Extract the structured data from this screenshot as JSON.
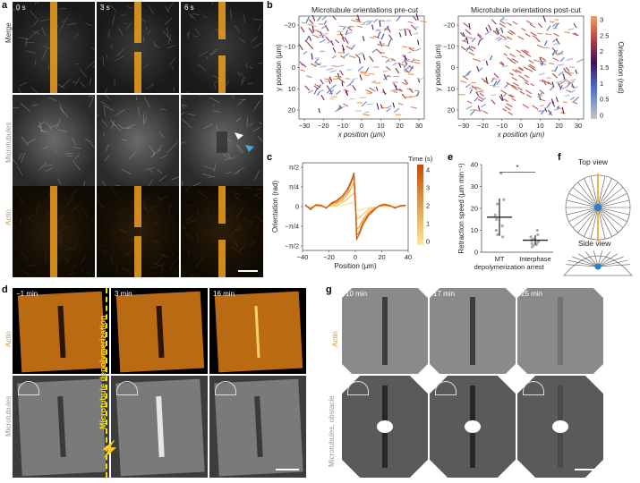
{
  "panel_a": {
    "label": "a",
    "times": [
      "0 s",
      "3 s",
      "6 s"
    ],
    "rows": [
      "Merge",
      "Microtubules",
      "Actin"
    ]
  },
  "panel_b": {
    "label": "b",
    "title_pre": "Microtubule orientations pre-cut",
    "title_post": "Microtubule orientations post-cut",
    "xlabel": "x position (µm)",
    "ylabel": "y position (µm)",
    "colorbar_label": "Orientation (rad)",
    "colorbar_ticks": [
      "3",
      "2.5",
      "2",
      "1.5",
      "1",
      "0.5",
      "0"
    ],
    "xticks": [
      "−30",
      "−20",
      "−10",
      "0",
      "10",
      "20",
      "30"
    ],
    "yticks": [
      "−20",
      "−10",
      "0",
      "10",
      "20"
    ]
  },
  "panel_c": {
    "label": "c",
    "legend_title": "Time (s)",
    "legend_ticks": [
      "4",
      "3",
      "2",
      "1",
      "0"
    ]
  },
  "panel_e": {
    "label": "e",
    "significance": "*"
  },
  "panel_f": {
    "label": "f",
    "top_view": "Top view",
    "side_view": "Side view"
  },
  "panel_d": {
    "label": "d",
    "times": [
      "−1 min",
      "3 min",
      "16 min"
    ],
    "rows": [
      "Actin",
      "Microtubules"
    ],
    "event": "Microtubule depolymerization"
  },
  "panel_g": {
    "label": "g",
    "times": [
      "10 min",
      "17 min",
      "25 min"
    ],
    "row_actin": "Actin",
    "row_mt_a": "Microtubules,",
    "row_mt_b": "obstacle"
  },
  "chart_data": [
    {
      "type": "line",
      "panel": "c",
      "xlabel": "Position (µm)",
      "ylabel": "Orientation (rad)",
      "xlim": [
        -40,
        40
      ],
      "ylim": [
        -1.75,
        1.75
      ],
      "xticks": [
        "−40",
        "−20",
        "0",
        "20",
        "40"
      ],
      "yticks": [
        "π/2",
        "π/4",
        "0",
        "−π/4",
        "−π/2"
      ],
      "x": [
        -38,
        -34,
        -30,
        -26,
        -22,
        -18,
        -14,
        -10,
        -6,
        -3,
        -1,
        0,
        1,
        3,
        6,
        10,
        14,
        18,
        22,
        26,
        30,
        34,
        38
      ],
      "series": [
        {
          "name": "0",
          "values": [
            0.0,
            -0.02,
            0.01,
            0.0,
            -0.01,
            0.02,
            0.03,
            0.05,
            0.1,
            0.15,
            0.12,
            0.0,
            -0.12,
            -0.15,
            -0.1,
            -0.05,
            -0.02,
            0.0,
            0.01,
            0.0,
            -0.01,
            0.0,
            0.0
          ]
        },
        {
          "name": "1",
          "values": [
            0.02,
            -0.03,
            0.04,
            0.02,
            -0.02,
            0.05,
            0.08,
            0.15,
            0.3,
            0.45,
            0.55,
            0.1,
            -0.5,
            -0.45,
            -0.3,
            -0.12,
            -0.05,
            0.0,
            0.04,
            0.02,
            -0.02,
            0.0,
            0.02
          ]
        },
        {
          "name": "2",
          "values": [
            0.05,
            -0.06,
            0.05,
            0.03,
            -0.04,
            0.1,
            0.15,
            0.25,
            0.5,
            0.75,
            0.95,
            0.2,
            -0.9,
            -0.8,
            -0.5,
            -0.22,
            -0.1,
            0.02,
            0.06,
            0.03,
            -0.03,
            0.02,
            0.04
          ]
        },
        {
          "name": "3",
          "values": [
            0.06,
            -0.1,
            0.06,
            0.05,
            -0.05,
            0.12,
            0.2,
            0.35,
            0.6,
            0.95,
            1.2,
            0.2,
            -1.15,
            -1.0,
            -0.6,
            -0.3,
            -0.12,
            0.03,
            0.08,
            0.04,
            -0.05,
            0.03,
            0.05
          ]
        },
        {
          "name": "4",
          "values": [
            0.08,
            -0.12,
            0.07,
            0.06,
            -0.06,
            0.15,
            0.25,
            0.42,
            0.7,
            1.05,
            1.35,
            0.2,
            -1.3,
            -1.1,
            -0.7,
            -0.35,
            -0.15,
            0.04,
            0.1,
            0.05,
            -0.06,
            0.04,
            0.06
          ]
        }
      ]
    },
    {
      "type": "scatter",
      "panel": "e",
      "ylabel": "Retraction speed (µm min⁻¹)",
      "ylim": [
        0,
        40
      ],
      "yticks": [
        "0",
        "10",
        "20",
        "30",
        "40"
      ],
      "categories": [
        "MT depolymerization",
        "Interphase arrest"
      ],
      "cat_line1": [
        "MT",
        "Interphase"
      ],
      "cat_line2": [
        "depolymerization",
        "arrest"
      ],
      "means": [
        16,
        5.5
      ],
      "sd": [
        8.5,
        2.2
      ],
      "points": [
        [
          36,
          24,
          22,
          17,
          15,
          12,
          10,
          8,
          7
        ],
        [
          10,
          8,
          7,
          6,
          5.5,
          5,
          4.5,
          4,
          3.5,
          3,
          2.5
        ]
      ]
    }
  ]
}
